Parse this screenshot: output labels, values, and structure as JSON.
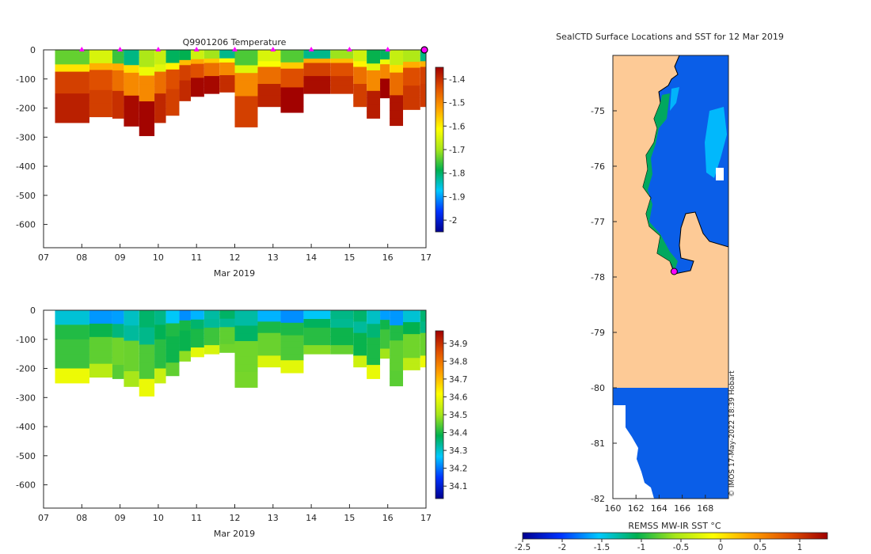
{
  "colors": {
    "temperature_map": [
      "#00008f",
      "#0033ff",
      "#00c8ff",
      "#00b050",
      "#a6e61a",
      "#ffff00",
      "#ffa000",
      "#e05000",
      "#a00000"
    ],
    "salinity_map": [
      "#00008f",
      "#0033ff",
      "#00c8ff",
      "#00b050",
      "#a6e61a",
      "#ffff00",
      "#ffa000",
      "#e05000",
      "#a00000"
    ],
    "land": "#fdca96",
    "marker": "#ff00ff",
    "axis": "#262626"
  },
  "chart_data": [
    {
      "id": "temperature_section",
      "type": "heatmap",
      "title": "Q9901206  Temperature",
      "xlabel": "Mar 2019",
      "ylabel": "",
      "xlim": [
        7,
        17
      ],
      "ylim": [
        -680,
        0
      ],
      "xticks": [
        "07",
        "08",
        "09",
        "10",
        "11",
        "12",
        "13",
        "14",
        "15",
        "16",
        "17"
      ],
      "yticks": [
        "0",
        "-100",
        "-200",
        "-300",
        "-400",
        "-500",
        "-600"
      ],
      "colorbar": {
        "range": [
          -2.05,
          -1.35
        ],
        "ticks": [
          "-1.4",
          "-1.5",
          "-1.6",
          "-1.7",
          "-1.8",
          "-1.9",
          "-2"
        ]
      },
      "surface_marker_days": [
        8,
        9,
        10,
        11,
        12,
        13,
        14,
        15,
        16
      ],
      "last_profile_day": 17,
      "profiles": [
        {
          "day": 7.3,
          "max_depth": 250
        },
        {
          "day": 8.2,
          "max_depth": 230
        },
        {
          "day": 8.8,
          "max_depth": 235
        },
        {
          "day": 9.1,
          "max_depth": 262
        },
        {
          "day": 9.5,
          "max_depth": 295
        },
        {
          "day": 9.9,
          "max_depth": 250
        },
        {
          "day": 10.2,
          "max_depth": 225
        },
        {
          "day": 10.55,
          "max_depth": 175
        },
        {
          "day": 10.85,
          "max_depth": 160
        },
        {
          "day": 11.2,
          "max_depth": 150
        },
        {
          "day": 11.6,
          "max_depth": 145
        },
        {
          "day": 12.0,
          "max_depth": 265
        },
        {
          "day": 12.6,
          "max_depth": 195
        },
        {
          "day": 13.2,
          "max_depth": 215
        },
        {
          "day": 13.8,
          "max_depth": 150
        },
        {
          "day": 14.5,
          "max_depth": 150
        },
        {
          "day": 15.1,
          "max_depth": 195
        },
        {
          "day": 15.45,
          "max_depth": 235
        },
        {
          "day": 15.8,
          "max_depth": 165
        },
        {
          "day": 16.05,
          "max_depth": 260
        },
        {
          "day": 16.4,
          "max_depth": 205
        },
        {
          "day": 16.85,
          "max_depth": 195
        }
      ]
    },
    {
      "id": "salinity_section",
      "type": "heatmap",
      "title": "",
      "xlabel": "Mar 2019",
      "ylabel": "",
      "xlim": [
        7,
        17
      ],
      "ylim": [
        -680,
        0
      ],
      "xticks": [
        "07",
        "08",
        "09",
        "10",
        "11",
        "12",
        "13",
        "14",
        "15",
        "16",
        "17"
      ],
      "yticks": [
        "0",
        "-100",
        "-200",
        "-300",
        "-400",
        "-500",
        "-600"
      ],
      "colorbar": {
        "range": [
          34.03,
          34.97
        ],
        "ticks": [
          "34.9",
          "34.8",
          "34.7",
          "34.6",
          "34.5",
          "34.4",
          "34.3",
          "34.2",
          "34.1"
        ]
      },
      "profiles": [
        {
          "day": 7.3,
          "max_depth": 250
        },
        {
          "day": 8.2,
          "max_depth": 230
        },
        {
          "day": 8.8,
          "max_depth": 235
        },
        {
          "day": 9.1,
          "max_depth": 262
        },
        {
          "day": 9.5,
          "max_depth": 295
        },
        {
          "day": 9.9,
          "max_depth": 250
        },
        {
          "day": 10.2,
          "max_depth": 225
        },
        {
          "day": 10.55,
          "max_depth": 175
        },
        {
          "day": 10.85,
          "max_depth": 160
        },
        {
          "day": 11.2,
          "max_depth": 150
        },
        {
          "day": 11.6,
          "max_depth": 145
        },
        {
          "day": 12.0,
          "max_depth": 265
        },
        {
          "day": 12.6,
          "max_depth": 195
        },
        {
          "day": 13.2,
          "max_depth": 215
        },
        {
          "day": 13.8,
          "max_depth": 150
        },
        {
          "day": 14.5,
          "max_depth": 150
        },
        {
          "day": 15.1,
          "max_depth": 195
        },
        {
          "day": 15.45,
          "max_depth": 235
        },
        {
          "day": 15.8,
          "max_depth": 165
        },
        {
          "day": 16.05,
          "max_depth": 260
        },
        {
          "day": 16.4,
          "max_depth": 205
        },
        {
          "day": 16.85,
          "max_depth": 195
        }
      ]
    },
    {
      "id": "sst_map",
      "type": "heatmap",
      "title": "SealCTD Surface Locations and SST for 12 Mar 2019",
      "xlabel": "",
      "ylabel": "",
      "xlim": [
        160,
        170
      ],
      "ylim": [
        -82,
        -74
      ],
      "xticks": [
        "160",
        "162",
        "164",
        "166",
        "168"
      ],
      "yticks": [
        "-75",
        "-76",
        "-77",
        "-78",
        "-79",
        "-80",
        "-81",
        "-82"
      ],
      "colorbar": {
        "label": "REMSS MW-IR SST °C",
        "range": [
          -2.5,
          1.35
        ],
        "ticks": [
          "-2.5",
          "-2",
          "-1.5",
          "-1",
          "-0.5",
          "0",
          "0.5",
          "1"
        ]
      },
      "location_marker": {
        "lon": 165.3,
        "lat": -77.9
      },
      "watermark": "© IMOS 17-May-2022 18:39 Hobart"
    }
  ]
}
